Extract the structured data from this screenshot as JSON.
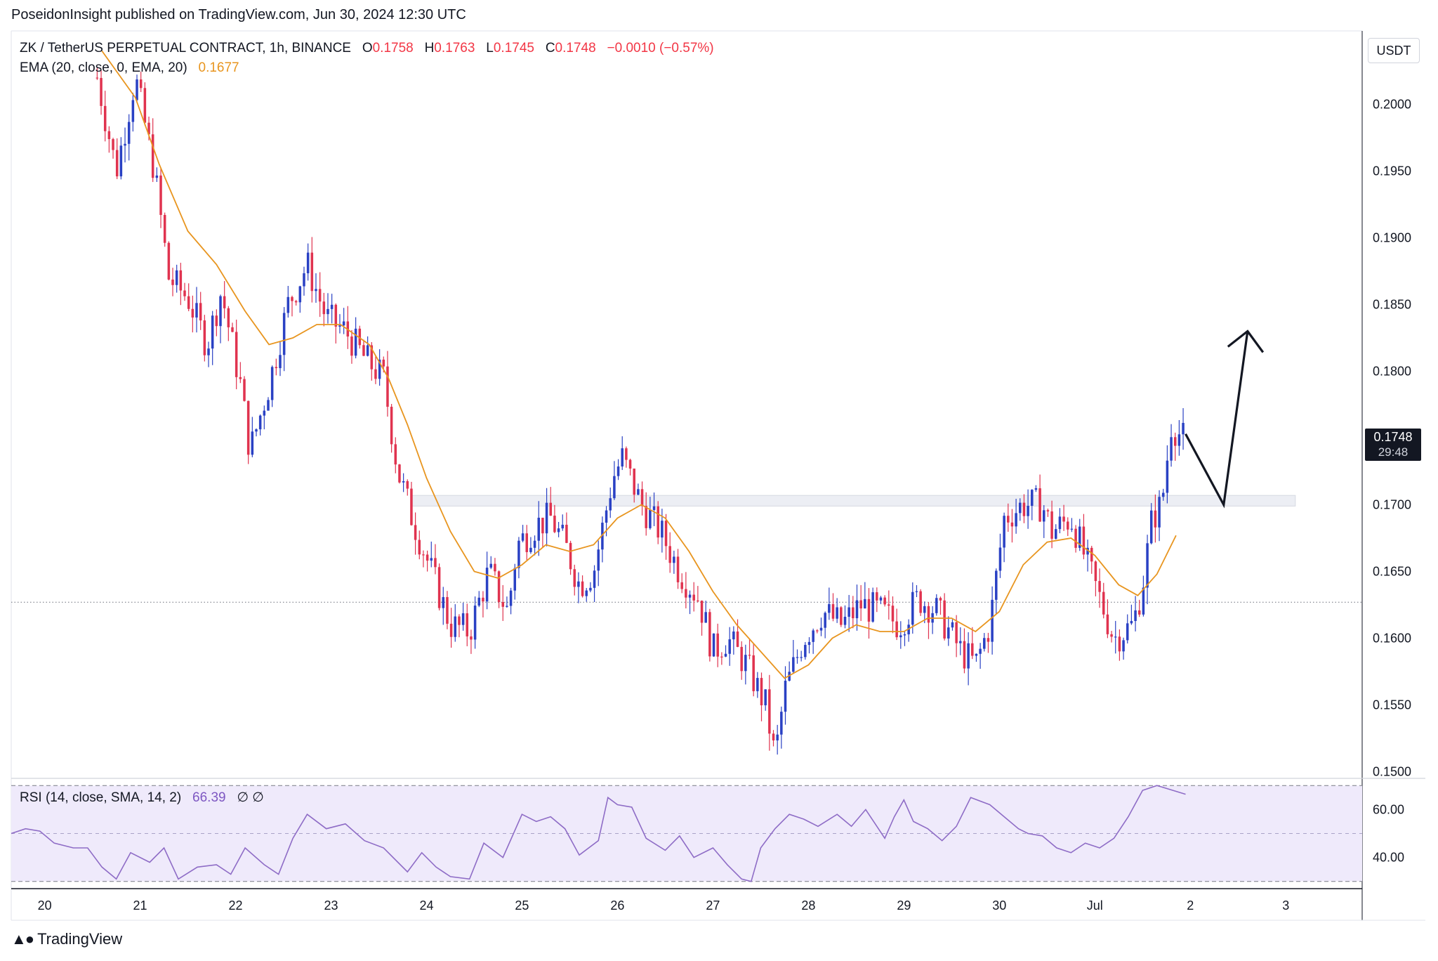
{
  "attribution": "PoseidonInsight published on TradingView.com, Jun 30, 2024 12:30 UTC",
  "legend": {
    "symbol": "ZK / TetherUS PERPETUAL CONTRACT, 1h, BINANCE",
    "o_label": "O",
    "o_value": "0.1758",
    "h_label": "H",
    "h_value": "0.1763",
    "l_label": "L",
    "l_value": "0.1745",
    "c_label": "C",
    "c_value": "0.1748",
    "change": "−0.0010 (−0.57%)",
    "ema_label": "EMA (20, close, 0, EMA, 20)",
    "ema_value": "0.1677",
    "rsi_label": "RSI (14, close, SMA, 14, 2)",
    "rsi_value": "66.39",
    "rsi_extra": "∅  ∅"
  },
  "currency_button": "USDT",
  "last_price": {
    "price": "0.1748",
    "countdown": "29:48"
  },
  "footer": {
    "brand": "TradingView"
  },
  "colors": {
    "up": "#2a41c4",
    "down": "#e0334f",
    "ema": "#e8951f",
    "rsi": "#8e6cc6",
    "rsi_band": "#efeafb",
    "zone": "#eceef4"
  },
  "chart_data": [
    {
      "type": "candlestick",
      "title": "ZK / TetherUS PERPETUAL CONTRACT, 1h, BINANCE",
      "ylim": [
        0.1495,
        0.2055
      ],
      "y_ticks": [
        "0.2000",
        "0.1950",
        "0.1900",
        "0.1850",
        "0.1800",
        "0.1750",
        "0.1700",
        "0.1650",
        "0.1600",
        "0.1550",
        "0.1500"
      ],
      "x_tick_labels": [
        "20",
        "21",
        "22",
        "23",
        "24",
        "25",
        "26",
        "27",
        "28",
        "29",
        "30",
        "Jul",
        "2",
        "3"
      ],
      "x_range_days": [
        19.65,
        33.8
      ],
      "close_path": [
        [
          20.55,
          0.202
        ],
        [
          20.75,
          0.195
        ],
        [
          20.95,
          0.202
        ],
        [
          21.15,
          0.195
        ],
        [
          21.3,
          0.187
        ],
        [
          21.5,
          0.1855
        ],
        [
          21.7,
          0.182
        ],
        [
          21.85,
          0.186
        ],
        [
          22.05,
          0.179
        ],
        [
          22.15,
          0.174
        ],
        [
          22.35,
          0.179
        ],
        [
          22.55,
          0.185
        ],
        [
          22.75,
          0.188
        ],
        [
          22.95,
          0.184
        ],
        [
          23.15,
          0.183
        ],
        [
          23.35,
          0.181
        ],
        [
          23.55,
          0.1795
        ],
        [
          23.7,
          0.1725
        ],
        [
          23.85,
          0.169
        ],
        [
          24.05,
          0.165
        ],
        [
          24.25,
          0.161
        ],
        [
          24.45,
          0.1605
        ],
        [
          24.65,
          0.165
        ],
        [
          24.85,
          0.162
        ],
        [
          24.95,
          0.167
        ],
        [
          25.15,
          0.1685
        ],
        [
          25.3,
          0.169
        ],
        [
          25.45,
          0.167
        ],
        [
          25.6,
          0.164
        ],
        [
          25.75,
          0.165
        ],
        [
          25.95,
          0.172
        ],
        [
          26.05,
          0.1735
        ],
        [
          26.25,
          0.17
        ],
        [
          26.45,
          0.168
        ],
        [
          26.65,
          0.165
        ],
        [
          26.85,
          0.163
        ],
        [
          27.0,
          0.159
        ],
        [
          27.15,
          0.16
        ],
        [
          27.35,
          0.158
        ],
        [
          27.55,
          0.155
        ],
        [
          27.65,
          0.151
        ],
        [
          27.75,
          0.156
        ],
        [
          27.95,
          0.16
        ],
        [
          28.15,
          0.162
        ],
        [
          28.35,
          0.161
        ],
        [
          28.55,
          0.1625
        ],
        [
          28.75,
          0.162
        ],
        [
          28.95,
          0.161
        ],
        [
          29.15,
          0.163
        ],
        [
          29.35,
          0.162
        ],
        [
          29.6,
          0.159
        ],
        [
          29.75,
          0.158
        ],
        [
          29.9,
          0.161
        ],
        [
          30.05,
          0.169
        ],
        [
          30.25,
          0.17
        ],
        [
          30.45,
          0.17
        ],
        [
          30.55,
          0.168
        ],
        [
          30.75,
          0.169
        ],
        [
          30.95,
          0.165
        ],
        [
          31.05,
          0.163
        ],
        [
          31.2,
          0.16
        ],
        [
          31.4,
          0.161
        ],
        [
          31.5,
          0.164
        ],
        [
          31.6,
          0.169
        ],
        [
          31.7,
          0.17
        ],
        [
          31.8,
          0.176
        ],
        [
          31.95,
          0.1748
        ]
      ],
      "ema_path": [
        [
          20.6,
          0.204
        ],
        [
          20.95,
          0.2005
        ],
        [
          21.2,
          0.1955
        ],
        [
          21.5,
          0.1905
        ],
        [
          21.8,
          0.188
        ],
        [
          22.1,
          0.1845
        ],
        [
          22.35,
          0.182
        ],
        [
          22.6,
          0.1825
        ],
        [
          22.85,
          0.1835
        ],
        [
          23.1,
          0.1835
        ],
        [
          23.4,
          0.182
        ],
        [
          23.6,
          0.1795
        ],
        [
          23.8,
          0.176
        ],
        [
          24.0,
          0.172
        ],
        [
          24.25,
          0.168
        ],
        [
          24.5,
          0.165
        ],
        [
          24.75,
          0.1645
        ],
        [
          25.0,
          0.1655
        ],
        [
          25.25,
          0.167
        ],
        [
          25.5,
          0.1665
        ],
        [
          25.75,
          0.167
        ],
        [
          26.0,
          0.169
        ],
        [
          26.25,
          0.17
        ],
        [
          26.5,
          0.169
        ],
        [
          26.75,
          0.1665
        ],
        [
          27.0,
          0.1635
        ],
        [
          27.25,
          0.161
        ],
        [
          27.5,
          0.159
        ],
        [
          27.75,
          0.157
        ],
        [
          28.0,
          0.158
        ],
        [
          28.25,
          0.16
        ],
        [
          28.5,
          0.161
        ],
        [
          28.75,
          0.1605
        ],
        [
          29.0,
          0.1605
        ],
        [
          29.25,
          0.1615
        ],
        [
          29.5,
          0.1615
        ],
        [
          29.75,
          0.1605
        ],
        [
          30.0,
          0.162
        ],
        [
          30.25,
          0.1655
        ],
        [
          30.5,
          0.1672
        ],
        [
          30.75,
          0.1675
        ],
        [
          31.0,
          0.1662
        ],
        [
          31.25,
          0.164
        ],
        [
          31.45,
          0.1632
        ],
        [
          31.65,
          0.1648
        ],
        [
          31.85,
          0.1677
        ]
      ],
      "resistance_zone": {
        "price_low": 0.1699,
        "price_high": 0.1707,
        "from_day": 23.85,
        "to_day": 33.1
      },
      "current_price_line": 0.1748,
      "dotted_reference_line": 0.1627,
      "projection_path": [
        [
          31.95,
          0.1753
        ],
        [
          32.35,
          0.17
        ],
        [
          32.6,
          0.183
        ]
      ]
    },
    {
      "type": "line",
      "title": "RSI (14, close, SMA, 14, 2)",
      "ylim": [
        27,
        73
      ],
      "y_ticks": [
        "60.00",
        "40.00"
      ],
      "levels": [
        70,
        50,
        30
      ],
      "rsi_path": [
        [
          19.65,
          50
        ],
        [
          19.8,
          52
        ],
        [
          19.95,
          51
        ],
        [
          20.1,
          46
        ],
        [
          20.3,
          44
        ],
        [
          20.45,
          44
        ],
        [
          20.6,
          36
        ],
        [
          20.75,
          31
        ],
        [
          20.9,
          42
        ],
        [
          21.1,
          38
        ],
        [
          21.25,
          44
        ],
        [
          21.4,
          31
        ],
        [
          21.6,
          36
        ],
        [
          21.8,
          37
        ],
        [
          21.95,
          33
        ],
        [
          22.1,
          44
        ],
        [
          22.3,
          37
        ],
        [
          22.45,
          33
        ],
        [
          22.6,
          48
        ],
        [
          22.75,
          58
        ],
        [
          22.95,
          52
        ],
        [
          23.15,
          54
        ],
        [
          23.35,
          47
        ],
        [
          23.55,
          44
        ],
        [
          23.7,
          38
        ],
        [
          23.8,
          34
        ],
        [
          23.95,
          42
        ],
        [
          24.1,
          36
        ],
        [
          24.25,
          32
        ],
        [
          24.45,
          31
        ],
        [
          24.6,
          46
        ],
        [
          24.8,
          40
        ],
        [
          25.0,
          58
        ],
        [
          25.15,
          55
        ],
        [
          25.3,
          57
        ],
        [
          25.45,
          52
        ],
        [
          25.6,
          41
        ],
        [
          25.8,
          47
        ],
        [
          25.9,
          65
        ],
        [
          26.0,
          62
        ],
        [
          26.15,
          61
        ],
        [
          26.3,
          48
        ],
        [
          26.5,
          43
        ],
        [
          26.65,
          49
        ],
        [
          26.8,
          40
        ],
        [
          27.0,
          44
        ],
        [
          27.15,
          37
        ],
        [
          27.3,
          31
        ],
        [
          27.4,
          30
        ],
        [
          27.5,
          44
        ],
        [
          27.65,
          52
        ],
        [
          27.8,
          58
        ],
        [
          27.95,
          56
        ],
        [
          28.1,
          53
        ],
        [
          28.3,
          58
        ],
        [
          28.45,
          53
        ],
        [
          28.6,
          60
        ],
        [
          28.7,
          54
        ],
        [
          28.8,
          48
        ],
        [
          28.9,
          57
        ],
        [
          29.0,
          64
        ],
        [
          29.1,
          55
        ],
        [
          29.25,
          52
        ],
        [
          29.4,
          47
        ],
        [
          29.55,
          53
        ],
        [
          29.7,
          65
        ],
        [
          29.9,
          62
        ],
        [
          30.05,
          57
        ],
        [
          30.2,
          52
        ],
        [
          30.3,
          50
        ],
        [
          30.45,
          49
        ],
        [
          30.6,
          44
        ],
        [
          30.75,
          42
        ],
        [
          30.9,
          46
        ],
        [
          31.05,
          44
        ],
        [
          31.2,
          48
        ],
        [
          31.35,
          57
        ],
        [
          31.5,
          68
        ],
        [
          31.65,
          70
        ],
        [
          31.95,
          66.39
        ]
      ]
    }
  ]
}
